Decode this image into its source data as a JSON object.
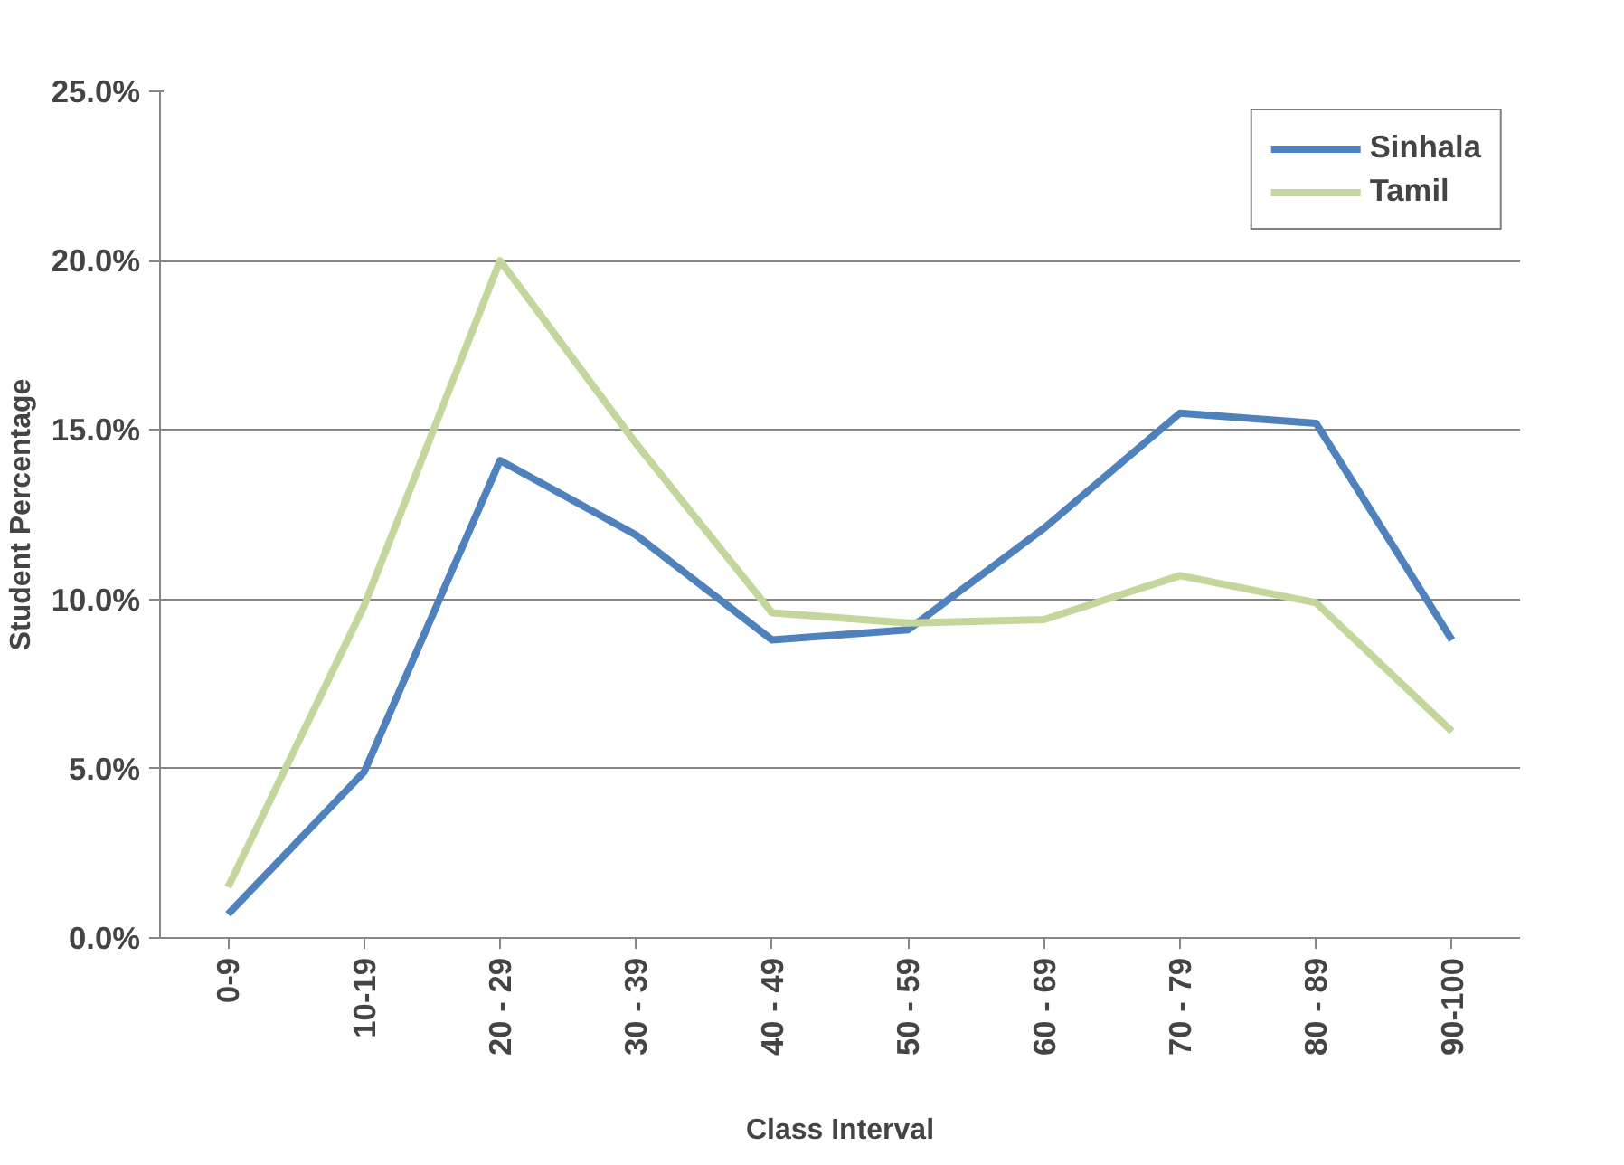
{
  "chart_data": {
    "type": "line",
    "xlabel": "Class Interval",
    "ylabel": "Student Percentage",
    "categories": [
      "0-9",
      "10-19",
      "20 - 29",
      "30 - 39",
      "40 - 49",
      "50 - 59",
      "60 - 69",
      "70 - 79",
      "80 - 89",
      "90-100"
    ],
    "series": [
      {
        "name": "Sinhala",
        "color": "#4f81bd",
        "values": [
          0.7,
          4.9,
          14.1,
          11.9,
          8.8,
          9.1,
          12.1,
          15.5,
          15.2,
          8.8
        ]
      },
      {
        "name": "Tamil",
        "color": "#c3d69b",
        "values": [
          1.5,
          9.8,
          20.0,
          14.6,
          9.6,
          9.3,
          9.4,
          10.7,
          9.9,
          6.1
        ]
      }
    ],
    "ylim": [
      0,
      25
    ],
    "yticks": [
      {
        "value": 0,
        "label": "0.0%"
      },
      {
        "value": 5,
        "label": "5.0%"
      },
      {
        "value": 10,
        "label": "10.0%"
      },
      {
        "value": 15,
        "label": "15.0%"
      },
      {
        "value": 20,
        "label": "20.0%"
      },
      {
        "value": 25,
        "label": "25.0%"
      }
    ],
    "grid": "y",
    "legend": "top right",
    "marker": "none",
    "line_style": "solid"
  }
}
